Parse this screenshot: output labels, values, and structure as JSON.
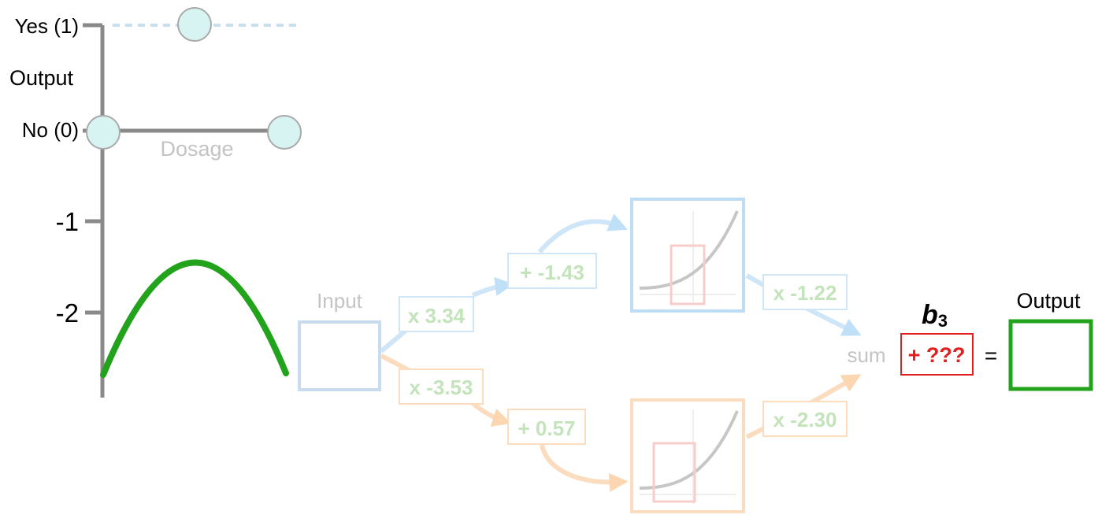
{
  "top_plot": {
    "y_tick_yes": "Yes (1)",
    "y_tick_no": "No (0)",
    "y_axis_label": "Output",
    "x_axis_label": "Dosage"
  },
  "curve_plot": {
    "y_tick_1": "-1",
    "y_tick_2": "-2"
  },
  "network": {
    "input_label": "Input",
    "w_top": "x 3.34",
    "w_bottom": "x -3.53",
    "b_top": "+ -1.43",
    "b_bottom": "+ 0.57",
    "w_out_top": "x -1.22",
    "w_out_bottom": "x -2.30",
    "sum_label": "sum",
    "bias_symbol": "b",
    "bias_subscript": "3",
    "bias_value": "+ ???",
    "equals": "=",
    "output_label": "Output"
  },
  "colors": {
    "axis": "#8a8a8a",
    "curve": "#22a31b",
    "point_fill": "#d8f4f2",
    "blue_faded": "#b9dcf6",
    "orange_faded": "#fbd9b4",
    "green_faded": "#bfe2b7",
    "red": "#e02020",
    "output_box": "#22a31b"
  }
}
